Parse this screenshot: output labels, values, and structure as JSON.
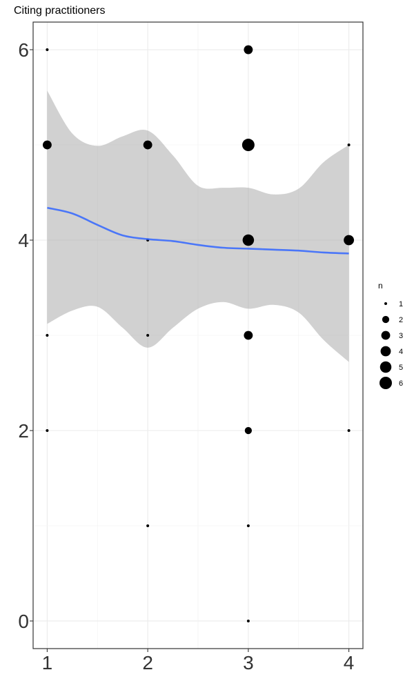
{
  "chart_data": {
    "type": "scatter",
    "title": "Citing practitioners",
    "xlabel": "",
    "ylabel": "",
    "xlim": [
      0.86,
      4.14
    ],
    "ylim": [
      -0.29,
      6.29
    ],
    "x_ticks": [
      1,
      2,
      3,
      4
    ],
    "y_ticks": [
      0,
      2,
      4,
      6
    ],
    "grid": true,
    "legend_position": "right",
    "size_legend": {
      "title": "n",
      "values": [
        1,
        2,
        3,
        4,
        5,
        6
      ]
    },
    "points": [
      {
        "x": 1,
        "y": 6,
        "n": 1
      },
      {
        "x": 1,
        "y": 5,
        "n": 3
      },
      {
        "x": 1,
        "y": 3,
        "n": 1
      },
      {
        "x": 1,
        "y": 2,
        "n": 1
      },
      {
        "x": 2,
        "y": 5,
        "n": 3
      },
      {
        "x": 2,
        "y": 4,
        "n": 1
      },
      {
        "x": 2,
        "y": 3,
        "n": 1
      },
      {
        "x": 2,
        "y": 1,
        "n": 1
      },
      {
        "x": 3,
        "y": 6,
        "n": 3
      },
      {
        "x": 3,
        "y": 5,
        "n": 6
      },
      {
        "x": 3,
        "y": 4,
        "n": 5
      },
      {
        "x": 3,
        "y": 3,
        "n": 3
      },
      {
        "x": 3,
        "y": 2,
        "n": 2
      },
      {
        "x": 3,
        "y": 1,
        "n": 1
      },
      {
        "x": 3,
        "y": 0,
        "n": 1
      },
      {
        "x": 4,
        "y": 5,
        "n": 1
      },
      {
        "x": 4,
        "y": 4,
        "n": 4
      },
      {
        "x": 4,
        "y": 2,
        "n": 1
      }
    ],
    "smooth": {
      "method": "loess",
      "color": "#3366FF",
      "fill": "#999999",
      "x": [
        1.0,
        1.25,
        1.5,
        1.75,
        2.0,
        2.25,
        2.5,
        2.75,
        3.0,
        3.25,
        3.5,
        3.75,
        4.0
      ],
      "y": [
        4.34,
        4.28,
        4.16,
        4.05,
        4.01,
        3.99,
        3.95,
        3.92,
        3.91,
        3.9,
        3.89,
        3.87,
        3.86
      ],
      "upper": [
        5.57,
        5.12,
        4.99,
        5.09,
        5.15,
        4.89,
        4.57,
        4.55,
        4.55,
        4.48,
        4.54,
        4.82,
        5.0
      ],
      "lower": [
        3.12,
        3.26,
        3.3,
        3.08,
        2.87,
        3.08,
        3.28,
        3.35,
        3.28,
        3.32,
        3.24,
        2.95,
        2.72
      ]
    }
  }
}
